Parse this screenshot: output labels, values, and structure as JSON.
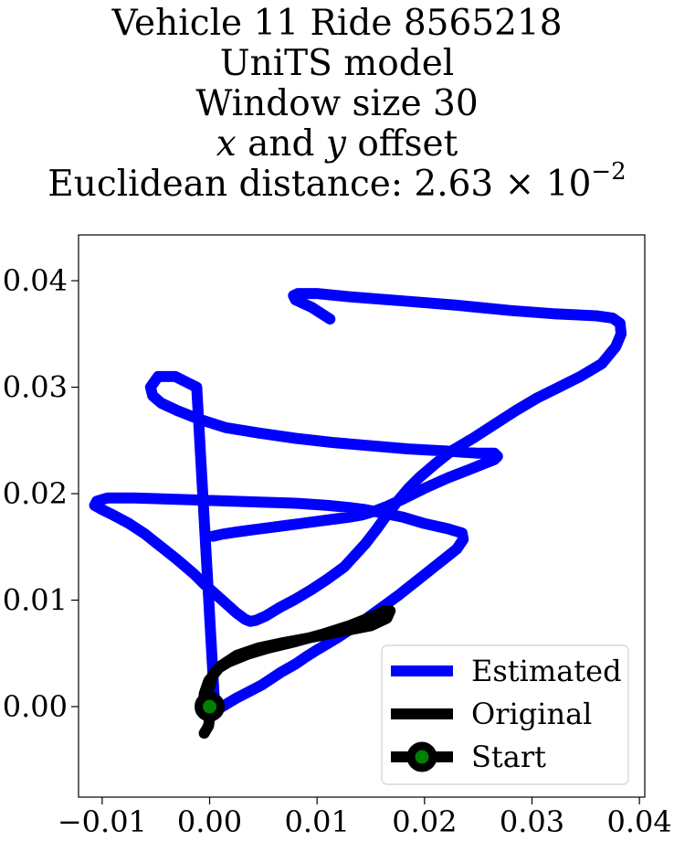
{
  "chart_data": {
    "type": "line",
    "title_lines": [
      "Vehicle 11 Ride 8565218",
      "UniTS model",
      "Window size 30",
      "x and y offset",
      "Euclidean distance: 2.63 × 10⁻²"
    ],
    "title_math": {
      "x_var": "x",
      "y_var": "y",
      "offset_text": "offset",
      "and_text": "and",
      "distance_prefix": "Euclidean distance: ",
      "distance_mantissa": "2.63",
      "distance_times": "×",
      "distance_base": "10",
      "distance_exponent": "−2"
    },
    "xlabel": "",
    "ylabel": "",
    "xlim": [
      -0.0122,
      0.0405
    ],
    "ylim": [
      -0.0085,
      0.0443
    ],
    "xticks": [
      -0.01,
      0.0,
      0.01,
      0.02,
      0.03,
      0.04
    ],
    "xtick_labels": [
      "−0.01",
      "0.00",
      "0.01",
      "0.02",
      "0.03",
      "0.04"
    ],
    "yticks": [
      0.0,
      0.01,
      0.02,
      0.03,
      0.04
    ],
    "ytick_labels": [
      "0.00",
      "0.01",
      "0.02",
      "0.03",
      "0.04"
    ],
    "grid": false,
    "legend_position": "lower-right",
    "series": [
      {
        "name": "Estimated",
        "color": "#0000ff",
        "x": [
          0.0112,
          0.0095,
          0.008,
          0.0078,
          0.0082,
          0.01,
          0.013,
          0.018,
          0.023,
          0.028,
          0.032,
          0.036,
          0.0375,
          0.0382,
          0.0383,
          0.0378,
          0.0365,
          0.0345,
          0.0325,
          0.0305,
          0.0285,
          0.0265,
          0.0245,
          0.0225,
          0.021,
          0.0195,
          0.0185,
          0.0175,
          0.0165,
          0.0155,
          0.0145,
          0.0135,
          0.0125,
          0.011,
          0.0095,
          0.008,
          0.0065,
          0.0052,
          0.0043,
          0.0038,
          0.0033,
          0.0025,
          0.0015,
          0.0005,
          -0.0005,
          -0.0015,
          -0.003,
          -0.0045,
          -0.006,
          -0.0075,
          -0.009,
          -0.01,
          -0.0107,
          -0.0105,
          -0.0095,
          -0.007,
          -0.004,
          -0.001,
          0.002,
          0.005,
          0.008,
          0.011,
          0.013,
          0.0145,
          0.016,
          0.018,
          0.02,
          0.0222,
          0.0235,
          0.0236,
          0.023,
          0.022,
          0.0205,
          0.019,
          0.0175,
          0.016,
          0.0145,
          0.013,
          0.0118,
          0.0108,
          0.0098,
          0.009,
          0.008,
          0.0066,
          0.0048,
          0.0025,
          0.0005,
          -0.0012,
          -0.0032,
          -0.0048,
          -0.0055,
          -0.0053,
          -0.0045,
          -0.003,
          -0.001,
          0.0015,
          0.0045,
          0.008,
          0.0115,
          0.015,
          0.0185,
          0.022,
          0.025,
          0.0265,
          0.0268,
          0.0265,
          0.0255,
          0.024,
          0.0222,
          0.02,
          0.018,
          0.0165,
          0.0152,
          0.0142,
          0.013,
          0.0115,
          0.01,
          0.0085,
          0.007,
          0.0055,
          0.004,
          0.0025,
          0.0012,
          0.0003
        ],
        "y": [
          0.0364,
          0.0375,
          0.0382,
          0.0386,
          0.0388,
          0.0388,
          0.0385,
          0.0381,
          0.0377,
          0.0372,
          0.0369,
          0.0367,
          0.0365,
          0.036,
          0.035,
          0.0338,
          0.0322,
          0.031,
          0.03,
          0.029,
          0.0278,
          0.0265,
          0.0252,
          0.024,
          0.0228,
          0.0215,
          0.0205,
          0.0193,
          0.018,
          0.0166,
          0.0153,
          0.0142,
          0.0131,
          0.012,
          0.011,
          0.0101,
          0.0093,
          0.0085,
          0.0081,
          0.008,
          0.0082,
          0.0088,
          0.0097,
          0.0106,
          0.0115,
          0.0125,
          0.0138,
          0.015,
          0.0162,
          0.0172,
          0.018,
          0.0185,
          0.0189,
          0.0193,
          0.0196,
          0.0196,
          0.0195,
          0.0194,
          0.0193,
          0.0192,
          0.0191,
          0.0189,
          0.0187,
          0.0185,
          0.0182,
          0.0178,
          0.0172,
          0.0167,
          0.0163,
          0.0157,
          0.0148,
          0.014,
          0.0128,
          0.0116,
          0.0104,
          0.0093,
          0.0082,
          0.0072,
          0.0064,
          0.0058,
          0.0052,
          0.0047,
          0.004,
          0.0032,
          0.002,
          0.0008,
          -0.0004,
          0.03,
          0.031,
          0.031,
          0.03,
          0.0292,
          0.0285,
          0.0278,
          0.027,
          0.0262,
          0.0257,
          0.0252,
          0.0248,
          0.0245,
          0.0242,
          0.024,
          0.0238,
          0.0238,
          0.0235,
          0.0232,
          0.0228,
          0.0222,
          0.0215,
          0.0205,
          0.0195,
          0.0188,
          0.0183,
          0.018,
          0.0178,
          0.0176,
          0.0174,
          0.0172,
          0.017,
          0.0168,
          0.0166,
          0.0164,
          0.0162,
          0.016
        ]
      },
      {
        "name": "Original",
        "color": "#000000",
        "x": [
          -0.0005,
          -0.0001,
          0.0,
          -0.0003,
          -0.0002,
          0.0001,
          0.0003,
          0.0008,
          0.0018,
          0.0035,
          0.0055,
          0.008,
          0.0105,
          0.013,
          0.015,
          0.0163,
          0.0168,
          0.0165,
          0.015,
          0.013,
          0.011,
          0.009,
          0.0068,
          0.0045,
          0.0025,
          0.001,
          -0.0001,
          -0.0005,
          -0.0006
        ],
        "y": [
          -0.0025,
          -0.0018,
          -0.001,
          0.0,
          0.0012,
          0.0022,
          0.003,
          0.0036,
          0.0042,
          0.0049,
          0.0055,
          0.0061,
          0.0068,
          0.0076,
          0.0084,
          0.009,
          0.009,
          0.0083,
          0.0076,
          0.0072,
          0.0068,
          0.0064,
          0.006,
          0.0055,
          0.0048,
          0.0038,
          0.0024,
          0.0012,
          0.0
        ]
      }
    ],
    "start_point": {
      "name": "Start",
      "x": 0.0,
      "y": 0.0,
      "face_color": "#008000",
      "edge_color": "#000000"
    }
  }
}
